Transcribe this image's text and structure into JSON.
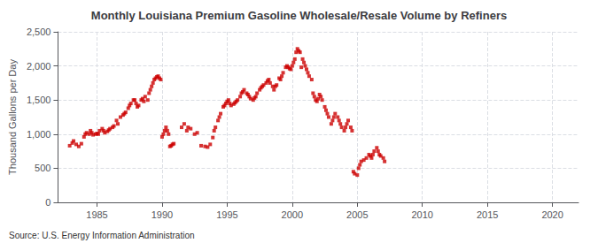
{
  "chart_data": {
    "type": "scatter",
    "title": "Monthly Louisiana Premium Gasoline Wholesale/Resale Volume by Refiners",
    "ylabel": "Thousand Gallons per Day",
    "annotations": [
      "Source: U.S. Energy Information Administration"
    ],
    "color": "#CC0000",
    "marker": "square",
    "grid": true,
    "xlim": [
      1982,
      2022
    ],
    "xticks": [
      1985,
      1990,
      1995,
      2000,
      2005,
      2010,
      2015,
      2020
    ],
    "ylim": [
      0,
      2500
    ],
    "yticks": [
      0,
      500,
      {
        "value": 1000,
        "label": "1,000"
      },
      {
        "value": 1500,
        "label": "1,500"
      },
      {
        "value": 2000,
        "label": "2,000"
      },
      {
        "value": 2500,
        "label": "2,500"
      }
    ],
    "x": [
      1982.9,
      1983.1,
      1983.2,
      1983.4,
      1983.6,
      1983.8,
      1984.0,
      1984.1,
      1984.2,
      1984.4,
      1984.5,
      1984.6,
      1984.7,
      1984.9,
      1985.0,
      1985.1,
      1985.2,
      1985.4,
      1985.5,
      1985.6,
      1985.8,
      1985.9,
      1986.0,
      1986.2,
      1986.3,
      1986.5,
      1986.6,
      1986.8,
      1987.0,
      1987.1,
      1987.2,
      1987.4,
      1987.5,
      1987.6,
      1987.8,
      1987.9,
      1988.0,
      1988.1,
      1988.2,
      1988.4,
      1988.5,
      1988.6,
      1988.7,
      1988.9,
      1989.0,
      1989.1,
      1989.2,
      1989.3,
      1989.4,
      1989.5,
      1989.6,
      1989.7,
      1989.8,
      1989.9,
      1990.0,
      1990.1,
      1990.2,
      1990.3,
      1990.4,
      1990.5,
      1990.6,
      1990.7,
      1990.8,
      1990.9,
      1991.5,
      1991.7,
      1991.9,
      1992.0,
      1992.2,
      1992.5,
      1992.7,
      1993.0,
      1993.3,
      1993.5,
      1993.7,
      1993.9,
      1994.0,
      1994.1,
      1994.3,
      1994.4,
      1994.5,
      1994.7,
      1994.8,
      1994.9,
      1995.0,
      1995.1,
      1995.2,
      1995.3,
      1995.5,
      1995.6,
      1995.7,
      1995.8,
      1996.0,
      1996.1,
      1996.2,
      1996.3,
      1996.5,
      1996.6,
      1996.7,
      1996.8,
      1997.0,
      1997.1,
      1997.2,
      1997.3,
      1997.5,
      1997.6,
      1997.7,
      1997.8,
      1998.0,
      1998.1,
      1998.2,
      1998.3,
      1998.5,
      1998.6,
      1998.7,
      1998.8,
      1999.0,
      1999.1,
      1999.2,
      1999.3,
      1999.5,
      1999.6,
      1999.7,
      1999.8,
      1999.9,
      2000.0,
      2000.1,
      2000.2,
      2000.3,
      2000.4,
      2000.5,
      2000.6,
      2000.7,
      2000.8,
      2000.9,
      2001.0,
      2001.1,
      2001.2,
      2001.3,
      2001.5,
      2001.6,
      2001.7,
      2001.8,
      2001.9,
      2002.0,
      2002.1,
      2002.2,
      2002.3,
      2002.5,
      2002.6,
      2002.7,
      2002.8,
      2003.0,
      2003.1,
      2003.2,
      2003.3,
      2003.5,
      2003.6,
      2003.7,
      2003.8,
      2004.0,
      2004.1,
      2004.2,
      2004.3,
      2004.5,
      2004.6,
      2004.7,
      2004.8,
      2005.0,
      2005.1,
      2005.2,
      2005.3,
      2005.5,
      2005.7,
      2005.9,
      2006.0,
      2006.1,
      2006.2,
      2006.3,
      2006.5,
      2006.6,
      2006.7,
      2006.8,
      2007.0,
      2007.1
    ],
    "values": [
      830,
      870,
      900,
      850,
      820,
      860,
      960,
      1000,
      1020,
      1000,
      1050,
      1020,
      990,
      1000,
      1010,
      1000,
      1050,
      1080,
      1050,
      1020,
      1040,
      1060,
      1080,
      1100,
      1120,
      1200,
      1150,
      1250,
      1280,
      1300,
      1320,
      1380,
      1420,
      1450,
      1500,
      1500,
      1450,
      1400,
      1420,
      1500,
      1520,
      1480,
      1550,
      1500,
      1600,
      1650,
      1700,
      1750,
      1800,
      1820,
      1840,
      1850,
      1820,
      1800,
      960,
      1000,
      1050,
      1100,
      1050,
      1000,
      820,
      830,
      850,
      860,
      1100,
      1150,
      1050,
      1100,
      1080,
      1000,
      1020,
      830,
      820,
      810,
      850,
      950,
      1050,
      1100,
      1200,
      1250,
      1300,
      1400,
      1420,
      1450,
      1480,
      1500,
      1450,
      1420,
      1440,
      1460,
      1480,
      1500,
      1550,
      1600,
      1620,
      1650,
      1600,
      1580,
      1550,
      1520,
      1500,
      1530,
      1550,
      1600,
      1650,
      1680,
      1700,
      1720,
      1750,
      1780,
      1800,
      1750,
      1700,
      1650,
      1700,
      1720,
      1820,
      1800,
      1850,
      1900,
      1980,
      2000,
      1980,
      1960,
      1950,
      2000,
      2050,
      2100,
      2200,
      2250,
      2220,
      2200,
      1980,
      2100,
      2050,
      2000,
      1950,
      1900,
      1850,
      1800,
      1600,
      1550,
      1500,
      1480,
      1520,
      1580,
      1550,
      1500,
      1400,
      1350,
      1300,
      1250,
      1150,
      1200,
      1250,
      1300,
      1250,
      1200,
      1150,
      1100,
      1050,
      1100,
      1150,
      1200,
      1100,
      1050,
      450,
      420,
      400,
      500,
      550,
      600,
      620,
      650,
      700,
      680,
      650,
      700,
      750,
      800,
      750,
      700,
      680,
      650,
      600
    ]
  }
}
